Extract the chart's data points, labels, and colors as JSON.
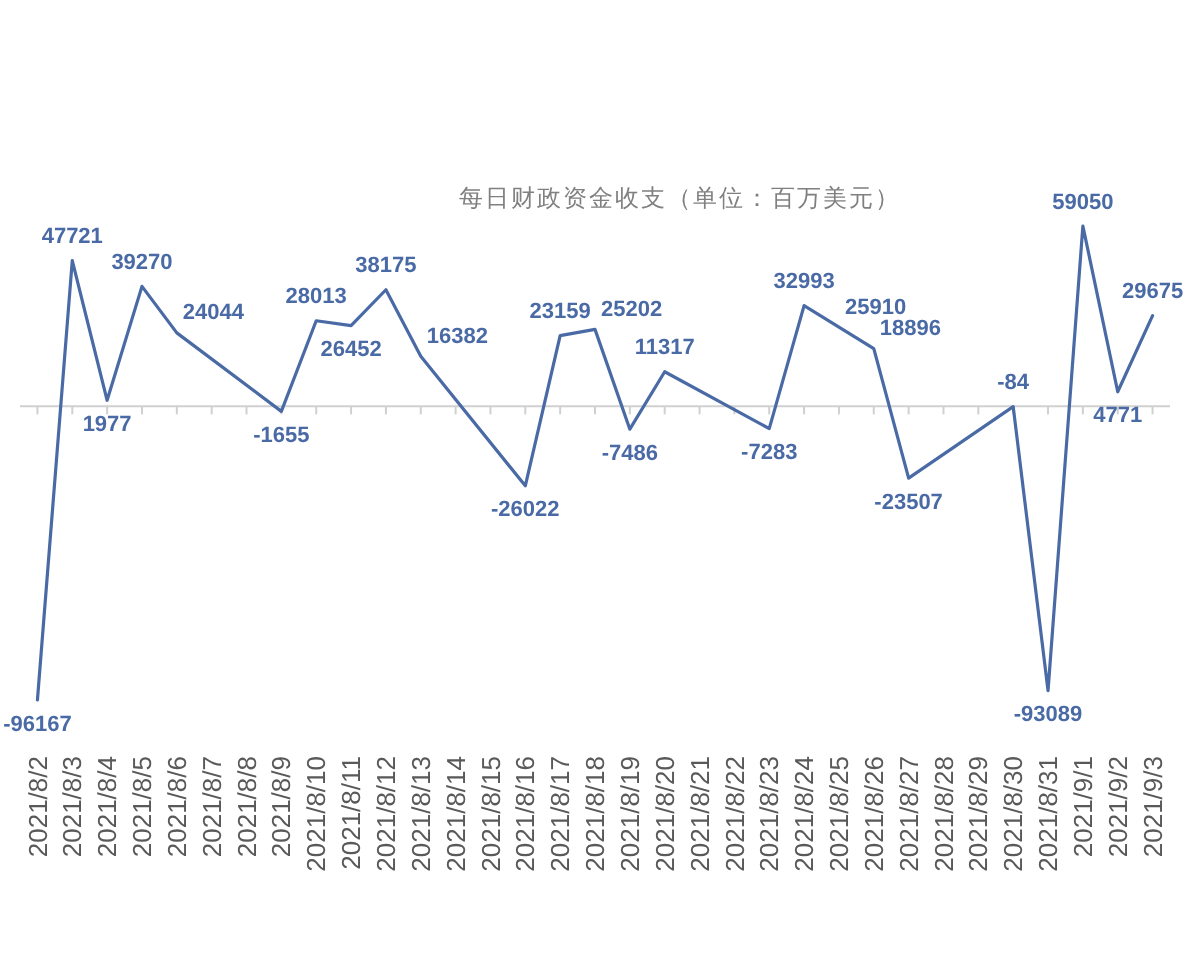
{
  "chart_data": {
    "type": "line",
    "title": "每日财政资金收支（单位：百万美元）",
    "x": [
      "2021-08-02",
      "2021-08-03",
      "2021-08-04",
      "2021-08-05",
      "2021-08-06",
      "2021-08-09",
      "2021-08-10",
      "2021-08-11",
      "2021-08-12",
      "2021-08-13",
      "2021-08-16",
      "2021-08-17",
      "2021-08-18",
      "2021-08-19",
      "2021-08-20",
      "2021-08-23",
      "2021-08-24",
      "2021-08-25",
      "2021-08-26",
      "2021-08-27",
      "2021-08-30",
      "2021-08-31",
      "2021-09-01",
      "2021-09-02",
      "2021-09-03"
    ],
    "xlim": [
      "2021-08-01T12:00",
      "2021-09-03T12:00"
    ],
    "xticks": [
      {
        "value": "2021-08-02",
        "label": "2021/8/2"
      },
      {
        "value": "2021-08-03",
        "label": "2021/8/3"
      },
      {
        "value": "2021-08-04",
        "label": "2021/8/4"
      },
      {
        "value": "2021-08-05",
        "label": "2021/8/5"
      },
      {
        "value": "2021-08-06",
        "label": "2021/8/6"
      },
      {
        "value": "2021-08-07",
        "label": "2021/8/7"
      },
      {
        "value": "2021-08-08",
        "label": "2021/8/8"
      },
      {
        "value": "2021-08-09",
        "label": "2021/8/9"
      },
      {
        "value": "2021-08-10",
        "label": "2021/8/10"
      },
      {
        "value": "2021-08-11",
        "label": "2021/8/11"
      },
      {
        "value": "2021-08-12",
        "label": "2021/8/12"
      },
      {
        "value": "2021-08-13",
        "label": "2021/8/13"
      },
      {
        "value": "2021-08-14",
        "label": "2021/8/14"
      },
      {
        "value": "2021-08-15",
        "label": "2021/8/15"
      },
      {
        "value": "2021-08-16",
        "label": "2021/8/16"
      },
      {
        "value": "2021-08-17",
        "label": "2021/8/17"
      },
      {
        "value": "2021-08-18",
        "label": "2021/8/18"
      },
      {
        "value": "2021-08-19",
        "label": "2021/8/19"
      },
      {
        "value": "2021-08-20",
        "label": "2021/8/20"
      },
      {
        "value": "2021-08-21",
        "label": "2021/8/21"
      },
      {
        "value": "2021-08-22",
        "label": "2021/8/22"
      },
      {
        "value": "2021-08-23",
        "label": "2021/8/23"
      },
      {
        "value": "2021-08-24",
        "label": "2021/8/24"
      },
      {
        "value": "2021-08-25",
        "label": "2021/8/25"
      },
      {
        "value": "2021-08-26",
        "label": "2021/8/26"
      },
      {
        "value": "2021-08-27",
        "label": "2021/8/27"
      },
      {
        "value": "2021-08-28",
        "label": "2021/8/28"
      },
      {
        "value": "2021-08-29",
        "label": "2021/8/29"
      },
      {
        "value": "2021-08-30",
        "label": "2021/8/30"
      },
      {
        "value": "2021-08-31",
        "label": "2021/8/31"
      },
      {
        "value": "2021-09-01",
        "label": "2021/9/1"
      },
      {
        "value": "2021-09-02",
        "label": "2021/9/2"
      },
      {
        "value": "2021-09-03",
        "label": "2021/9/3"
      }
    ],
    "series": [
      {
        "color": "#4a6aa6",
        "values": [
          -96167,
          47721,
          1977,
          39270,
          24044,
          -1655,
          28013,
          26452,
          38175,
          16382,
          -26022,
          23159,
          25202,
          -7486,
          11317,
          -7283,
          32993,
          25910,
          18896,
          -23507,
          -84,
          -93089,
          59050,
          4771,
          29675
        ]
      }
    ],
    "data_labels": true
  }
}
